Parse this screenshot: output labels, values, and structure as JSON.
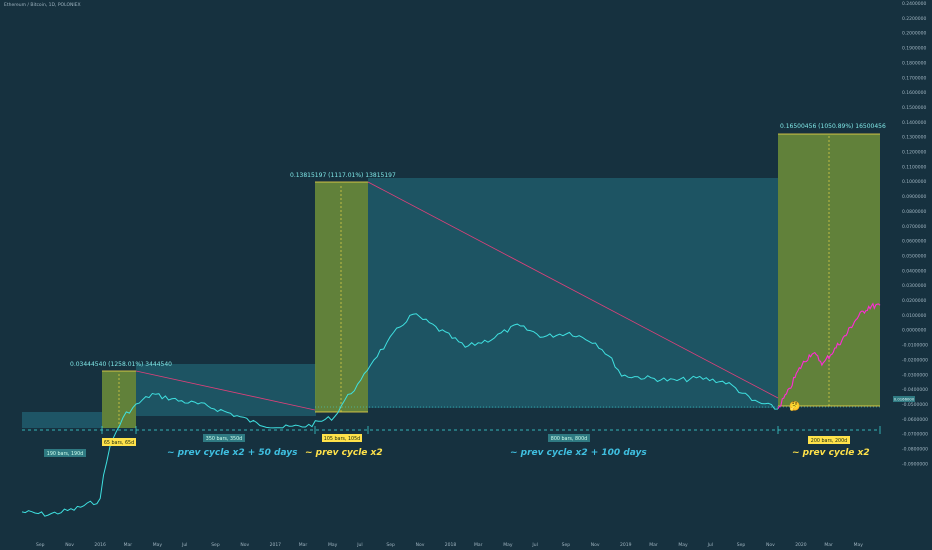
{
  "header": {
    "title": "Ethereum / Bitcoin, 1D, POLONIEX"
  },
  "chart_data": {
    "type": "line",
    "title": "Ethereum / Bitcoin, 1D, POLONIEX",
    "log_scale": true,
    "grid": false,
    "colors": {
      "price": "#3fe0e0",
      "projection": "#ff2bd6",
      "trend": "#e0407a",
      "box_green": "#6f8f3a",
      "box_teal": "#1f5a6a",
      "measure": "#ffe24a",
      "label_bg": "#2f7a82"
    },
    "y_axis_labels": [
      "0.2400000",
      "0.2200000",
      "0.2000000",
      "0.1900000",
      "0.1800000",
      "0.1700000",
      "0.1600000",
      "0.1500000",
      "0.1400000",
      "0.1300000",
      "0.1200000",
      "0.1100000",
      "0.1000000",
      "0.0900000",
      "0.0800000",
      "0.0700000",
      "0.0600000",
      "0.0500000",
      "0.0400000",
      "0.0300000",
      "0.0200000",
      "0.0100000",
      "0.0000000",
      "-0.0100000",
      "-0.0200000",
      "-0.0300000",
      "-0.0400000",
      "-0.0500000",
      "-0.0600000",
      "-0.0700000",
      "-0.0800000",
      "-0.0900000"
    ],
    "price_badge": "0.0166000",
    "x_axis_labels": [
      "Sep",
      "Nov",
      "2016",
      "Mar",
      "May",
      "Jul",
      "Sep",
      "Nov",
      "2017",
      "Mar",
      "May",
      "Jul",
      "Sep",
      "Nov",
      "2018",
      "Mar",
      "May",
      "Jul",
      "Sep",
      "Nov",
      "2019",
      "Mar",
      "May",
      "Jul",
      "Sep",
      "Nov",
      "2020",
      "Mar",
      "May"
    ],
    "series": [
      {
        "name": "",
        "values": [
          0.0017,
          0.0016,
          0.0018,
          0.0022,
          0.015,
          0.023,
          0.02,
          0.018,
          0.015,
          0.012,
          0.011,
          0.0115,
          0.014,
          0.03,
          0.07,
          0.135,
          0.096,
          0.065,
          0.078,
          0.105,
          0.082,
          0.09,
          0.072,
          0.035,
          0.033,
          0.031,
          0.033,
          0.03,
          0.02,
          0.0166
        ]
      },
      {
        "name": "",
        "values": [
          0.0166,
          0.025,
          0.042,
          0.058,
          0.045,
          0.062,
          0.085,
          0.125,
          0.16,
          0.165
        ]
      }
    ],
    "annotations": {
      "move1": "0.03444540 (1258.01%) 3444540",
      "move2": "0.13815197 (1117.01%) 13815197",
      "move3": "0.16500456 (1050.89%) 16500456",
      "bars1": "65 bars, 65d",
      "bars2": "105 bars, 105d",
      "bars3": "200 bars, 200d",
      "range_a": "190 bars, 190d",
      "range_b": "350 bars, 350d",
      "range_c": "800 bars, 800d",
      "cycle1": "~ prev cycle x2 + 50 days",
      "cycle2": "~ prev cycle x2",
      "cycle3": "~ prev cycle x2 + 100 days",
      "cycle4": "~ prev cycle x2",
      "emoji": "🤔"
    }
  }
}
